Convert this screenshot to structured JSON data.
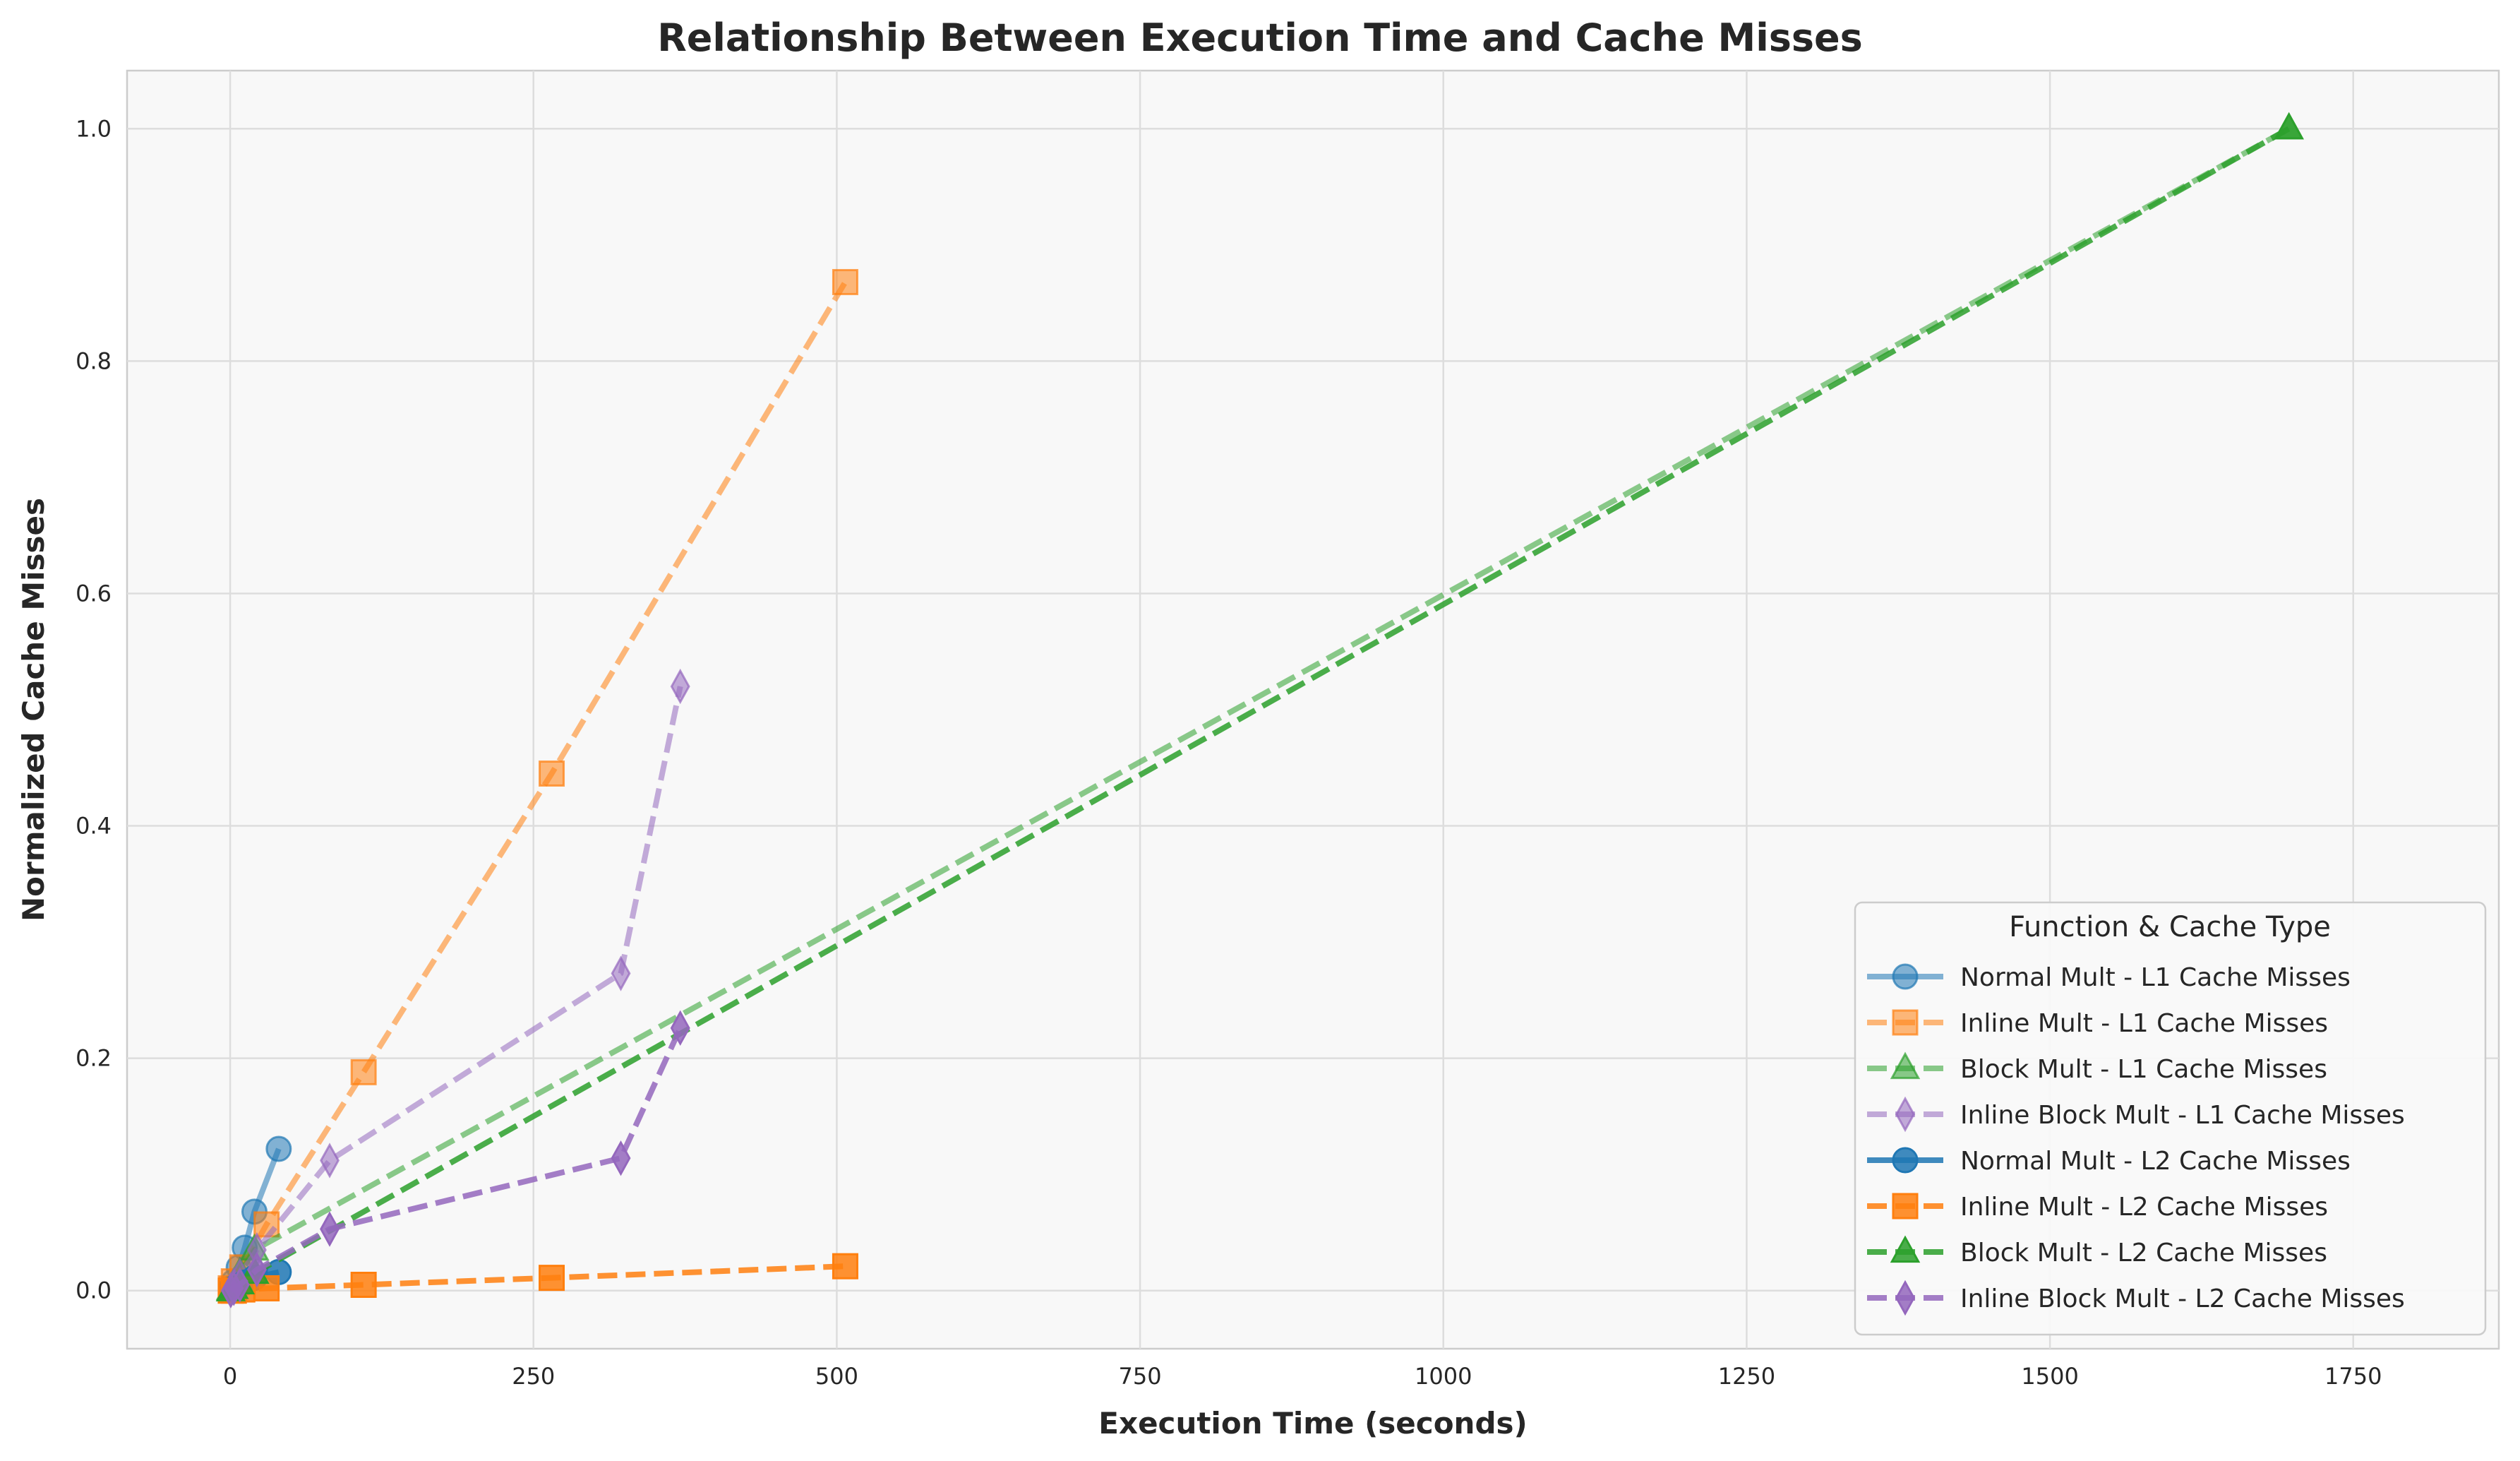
{
  "chart_data": {
    "type": "line",
    "title": "Relationship Between Execution Time and Cache Misses",
    "xlabel": "Execution Time (seconds)",
    "ylabel": "Normalized Cache Misses",
    "xlim": [
      -85,
      1870
    ],
    "ylim": [
      -0.05,
      1.05
    ],
    "xticks": [
      0,
      250,
      500,
      750,
      1000,
      1250,
      1500,
      1750
    ],
    "yticks": [
      0.0,
      0.2,
      0.4,
      0.6,
      0.8,
      1.0
    ],
    "grid": true,
    "legend": {
      "title": "Function & Cache Type",
      "position": "lower right"
    },
    "series": [
      {
        "name": "Normal Mult - L1 Cache Misses",
        "color": "#1f77b4",
        "marker": "circle",
        "dash": "solid",
        "alpha": 0.55,
        "points": [
          [
            0.5,
            0.002
          ],
          [
            3,
            0.008
          ],
          [
            7,
            0.02
          ],
          [
            12,
            0.037
          ],
          [
            20,
            0.068
          ],
          [
            40,
            0.122
          ]
        ]
      },
      {
        "name": "Inline Mult - L1 Cache Misses",
        "color": "#ff7f0e",
        "marker": "square",
        "dash": "dashed",
        "alpha": 0.55,
        "points": [
          [
            0.5,
            0.002
          ],
          [
            3,
            0.008
          ],
          [
            10,
            0.02
          ],
          [
            30,
            0.057
          ],
          [
            110,
            0.188
          ],
          [
            265,
            0.445
          ],
          [
            507,
            0.868
          ]
        ]
      },
      {
        "name": "Block Mult - L1 Cache Misses",
        "color": "#2ca02c",
        "marker": "triangle",
        "dash": "dashed",
        "alpha": 0.55,
        "points": [
          [
            0.5,
            0.001
          ],
          [
            3,
            0.006
          ],
          [
            8,
            0.015
          ],
          [
            20,
            0.035
          ],
          [
            1697,
            1.0
          ]
        ]
      },
      {
        "name": "Inline Block Mult - L1 Cache Misses",
        "color": "#9467bd",
        "marker": "diamond",
        "dash": "dashed",
        "alpha": 0.55,
        "points": [
          [
            0.5,
            0.001
          ],
          [
            3,
            0.005
          ],
          [
            8,
            0.013
          ],
          [
            22,
            0.035
          ],
          [
            82,
            0.112
          ],
          [
            322,
            0.273
          ],
          [
            371,
            0.52
          ]
        ]
      },
      {
        "name": "Normal Mult - L2 Cache Misses",
        "color": "#1f77b4",
        "marker": "circle",
        "dash": "solid",
        "alpha": 0.85,
        "points": [
          [
            0.5,
            0.001
          ],
          [
            3,
            0.002
          ],
          [
            7,
            0.004
          ],
          [
            12,
            0.007
          ],
          [
            20,
            0.011
          ],
          [
            40,
            0.016
          ]
        ]
      },
      {
        "name": "Inline Mult - L2 Cache Misses",
        "color": "#ff7f0e",
        "marker": "square",
        "dash": "dashed",
        "alpha": 0.85,
        "points": [
          [
            0.5,
            0.0
          ],
          [
            3,
            0.0
          ],
          [
            10,
            0.001
          ],
          [
            30,
            0.002
          ],
          [
            110,
            0.005
          ],
          [
            265,
            0.011
          ],
          [
            507,
            0.021
          ]
        ]
      },
      {
        "name": "Block Mult - L2 Cache Misses",
        "color": "#2ca02c",
        "marker": "triangle",
        "dash": "dashed",
        "alpha": 0.85,
        "points": [
          [
            0.5,
            0.0
          ],
          [
            3,
            0.002
          ],
          [
            8,
            0.006
          ],
          [
            20,
            0.015
          ],
          [
            1697,
            1.0
          ]
        ]
      },
      {
        "name": "Inline Block Mult - L2 Cache Misses",
        "color": "#9467bd",
        "marker": "diamond",
        "dash": "dashed",
        "alpha": 0.85,
        "points": [
          [
            0.5,
            0.0
          ],
          [
            3,
            0.002
          ],
          [
            8,
            0.005
          ],
          [
            22,
            0.018
          ],
          [
            82,
            0.053
          ],
          [
            322,
            0.114
          ],
          [
            371,
            0.226
          ]
        ]
      }
    ]
  }
}
